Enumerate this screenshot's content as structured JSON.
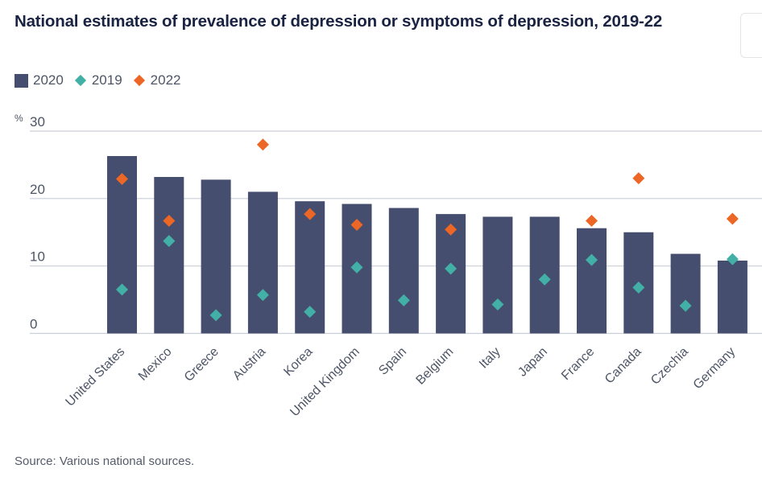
{
  "header": {
    "title": "National estimates of prevalence of depression or symptoms of depression, 2019-22"
  },
  "legend": {
    "items": [
      {
        "label": "2020",
        "shape": "bar",
        "color": "#454e6e"
      },
      {
        "label": "2019",
        "shape": "diamond",
        "color": "#42b0a6"
      },
      {
        "label": "2022",
        "shape": "diamond",
        "color": "#ec6625"
      }
    ]
  },
  "footer": {
    "source": "Source: Various national sources."
  },
  "chart_data": {
    "type": "bar",
    "title": "National estimates of prevalence of depression or symptoms of depression, 2019-22",
    "xlabel": "",
    "ylabel": "%",
    "ylim": [
      0,
      30
    ],
    "yticks": [
      0,
      10,
      20,
      30
    ],
    "grid": true,
    "legend_position": "top-left",
    "categories": [
      "United States",
      "Mexico",
      "Greece",
      "Austria",
      "Korea",
      "United Kingdom",
      "Spain",
      "Belgium",
      "Italy",
      "Japan",
      "France",
      "Canada",
      "Czechia",
      "Germany"
    ],
    "series": [
      {
        "name": "2020",
        "type": "bar",
        "color": "#454e6e",
        "values": [
          26.3,
          23.2,
          22.8,
          21.0,
          19.6,
          19.2,
          18.6,
          17.7,
          17.3,
          17.3,
          15.6,
          15.0,
          11.8,
          10.8
        ]
      },
      {
        "name": "2019",
        "type": "scatter",
        "marker": "diamond",
        "color": "#42b0a6",
        "values": [
          6.5,
          13.7,
          2.7,
          5.7,
          3.2,
          9.8,
          4.9,
          9.6,
          4.3,
          8.0,
          10.9,
          6.8,
          4.1,
          11.0
        ]
      },
      {
        "name": "2022",
        "type": "scatter",
        "marker": "diamond",
        "color": "#ec6625",
        "values": [
          22.9,
          16.7,
          null,
          28.0,
          17.7,
          16.1,
          null,
          15.4,
          null,
          null,
          16.7,
          23.0,
          null,
          17.0
        ]
      }
    ]
  }
}
